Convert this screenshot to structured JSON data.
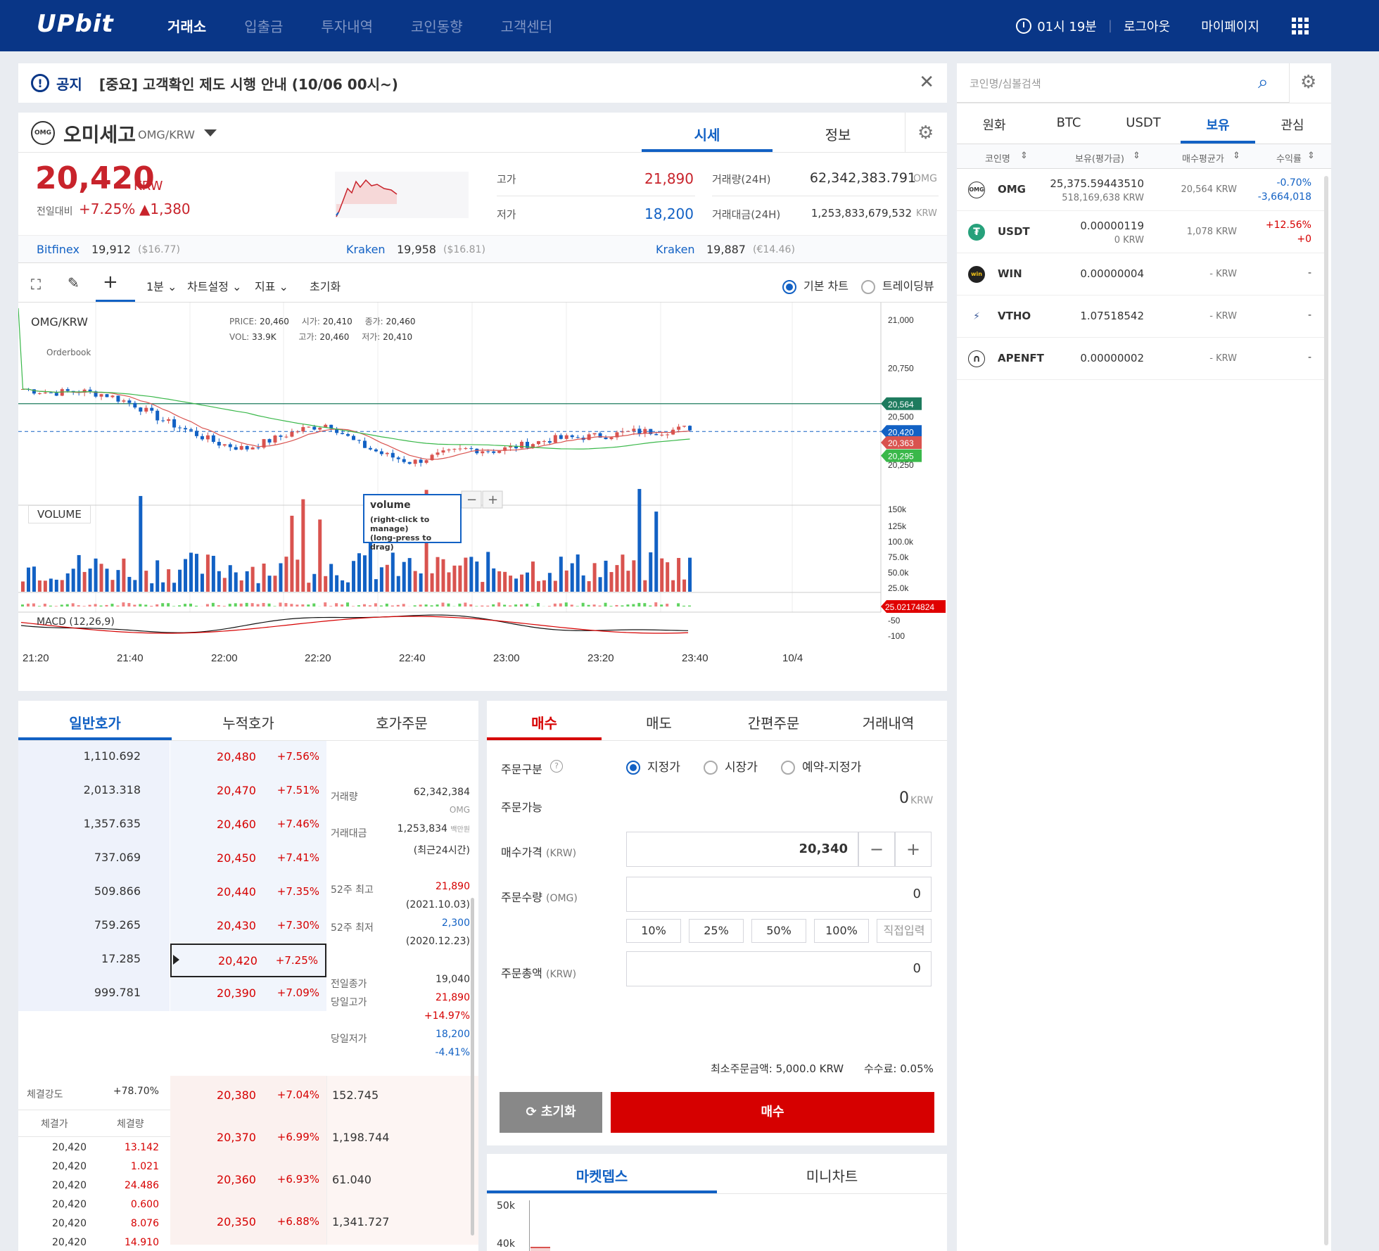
{
  "nav": {
    "logo": "UPbit",
    "items": [
      "거래소",
      "입출금",
      "투자내역",
      "코인동향",
      "고객센터"
    ],
    "timer": "01시 19분",
    "logout": "로그아웃",
    "mypage": "마이페이지"
  },
  "notice": {
    "tag": "공지",
    "text": "[중요] 고객확인 제도 시행 안내 (10/06 00시~)"
  },
  "coin": {
    "name": "오미세고",
    "pair": "OMG/KRW",
    "tab_price": "시세",
    "tab_info": "정보",
    "price": "20,420",
    "unit": "KRW",
    "change_label": "전일대비",
    "change_pct": "+7.25%",
    "change_amt": "▲1,380",
    "high_label": "고가",
    "high": "21,890",
    "low_label": "저가",
    "low": "18,200",
    "vol_label": "거래량(24H)",
    "vol": "62,342,383.791",
    "vol_unit": "OMG",
    "amt_label": "거래대금(24H)",
    "amt": "1,253,833,679,532",
    "amt_unit": "KRW"
  },
  "exchanges": [
    {
      "name": "Bitfinex",
      "price": "19,912",
      "sub": "($16.77)"
    },
    {
      "name": "Kraken",
      "price": "19,958",
      "sub": "($16.81)"
    },
    {
      "name": "Kraken",
      "price": "19,887",
      "sub": "(€14.46)"
    }
  ],
  "toolbar": {
    "interval": "1분",
    "settings": "차트설정",
    "indicator": "지표",
    "reset": "초기화",
    "basic": "기본 차트",
    "tv": "트레이딩뷰"
  },
  "chart": {
    "symbol": "OMG/KRW",
    "exch": "Orderbook",
    "legend": {
      "price_l": "PRICE:",
      "price": "20,460",
      "open_l": "시가:",
      "open": "20,410",
      "close_l": "종가:",
      "close": "20,460",
      "vol_l": "VOL:",
      "vol": "33.9K",
      "high_l": "고가:",
      "high": "20,460",
      "low_l": "저가:",
      "low": "20,410"
    },
    "volume_label": "VOLUME",
    "tooltip_title": "volume",
    "tooltip_1": "(right-click to manage)",
    "tooltip_2": "(long-press to drag)",
    "macd_label": "MACD (12,26,9)",
    "price_ticks": [
      "21,000",
      "20,750",
      "20,500",
      "20,250"
    ],
    "vol_ticks": [
      "150k",
      "125k",
      "100.0k",
      "75.0k",
      "50.0k",
      "25.0k"
    ],
    "macd_ticks": [
      "-50",
      "-100"
    ],
    "markers": [
      {
        "v": "20,564",
        "c": "#1e7b5e"
      },
      {
        "v": "20,420",
        "c": "#1261c4"
      },
      {
        "v": "20,363",
        "c": "#d9534f"
      },
      {
        "v": "20,295",
        "c": "#3ab84a"
      }
    ],
    "macd_marker": "25.02174824",
    "time_labels": [
      "21:20",
      "21:40",
      "22:00",
      "22:20",
      "22:40",
      "23:00",
      "23:20",
      "23:40",
      "10/4"
    ]
  },
  "orderbook": {
    "tabs": [
      "일반호가",
      "누적호가",
      "호가주문"
    ],
    "asks": [
      {
        "q": "1,110.692",
        "p": "20,480",
        "r": "+7.56%"
      },
      {
        "q": "2,013.318",
        "p": "20,470",
        "r": "+7.51%"
      },
      {
        "q": "1,357.635",
        "p": "20,460",
        "r": "+7.46%"
      },
      {
        "q": "737.069",
        "p": "20,450",
        "r": "+7.41%"
      },
      {
        "q": "509.866",
        "p": "20,440",
        "r": "+7.35%"
      },
      {
        "q": "759.265",
        "p": "20,430",
        "r": "+7.30%"
      },
      {
        "q": "17.285",
        "p": "20,420",
        "r": "+7.25%"
      },
      {
        "q": "999.781",
        "p": "20,390",
        "r": "+7.09%"
      }
    ],
    "bids": [
      {
        "q": "152.745",
        "p": "20,380",
        "r": "+7.04%"
      },
      {
        "q": "1,198.744",
        "p": "20,370",
        "r": "+6.99%"
      },
      {
        "q": "61.040",
        "p": "20,360",
        "r": "+6.93%"
      },
      {
        "q": "1,341.727",
        "p": "20,350",
        "r": "+6.88%"
      }
    ],
    "info": {
      "vol_l": "거래량",
      "vol": "62,342,384",
      "vol_u": "OMG",
      "amt_l": "거래대금",
      "amt": "1,253,834",
      "amt_u": "백만원",
      "amt_note": "(최근24시간)",
      "h52_l": "52주 최고",
      "h52": "21,890",
      "h52_d": "(2021.10.03)",
      "l52_l": "52주 최저",
      "l52": "2,300",
      "l52_d": "(2020.12.23)",
      "prev_l": "전일종가",
      "prev": "19,040",
      "dh_l": "당일고가",
      "dh": "21,890",
      "dh_p": "+14.97%",
      "dl_l": "당일저가",
      "dl": "18,200",
      "dl_p": "-4.41%"
    },
    "strength_l": "체결강도",
    "strength": "+78.70%",
    "th_price": "체결가",
    "th_qty": "체결량",
    "trades": [
      {
        "p": "20,420",
        "q": "13.142"
      },
      {
        "p": "20,420",
        "q": "1.021"
      },
      {
        "p": "20,420",
        "q": "24.486"
      },
      {
        "p": "20,420",
        "q": "0.600"
      },
      {
        "p": "20,420",
        "q": "8.076"
      },
      {
        "p": "20,420",
        "q": "14.910"
      }
    ]
  },
  "order": {
    "tabs": [
      "매수",
      "매도",
      "간편주문",
      "거래내역"
    ],
    "type_l": "주문구분",
    "types": [
      "지정가",
      "시장가",
      "예약-지정가"
    ],
    "avail_l": "주문가능",
    "avail": "0",
    "avail_u": "KRW",
    "price_l": "매수가격",
    "price_u": "(KRW)",
    "price": "20,340",
    "qty_l": "주문수량",
    "qty_u": "(OMG)",
    "qty": "0",
    "pcts": [
      "10%",
      "25%",
      "50%",
      "100%",
      "직접입력"
    ],
    "total_l": "주문총액",
    "total_u": "(KRW)",
    "total": "0",
    "min": "최소주문금액: 5,000.0 KRW",
    "fee": "수수료: 0.05%",
    "reset": "초기화",
    "buy": "매수"
  },
  "md": {
    "tabs": [
      "마켓뎁스",
      "미니차트"
    ],
    "ticks": [
      "50k",
      "40k"
    ]
  },
  "side": {
    "search_ph": "코인명/심볼검색",
    "tabs": [
      "원화",
      "BTC",
      "USDT",
      "보유",
      "관심"
    ],
    "cols": [
      "코인명",
      "보유(평가금)",
      "매수평균가",
      "수익률"
    ],
    "rows": [
      {
        "name": "OMG",
        "hold": "25,375.59443510",
        "eval": "518,169,638 KRW",
        "avg": "20,564 KRW",
        "rate": "-0.70%",
        "rate2": "-3,664,018",
        "cls": "blue"
      },
      {
        "name": "USDT",
        "hold": "0.00000119",
        "eval": "0 KRW",
        "avg": "1,078 KRW",
        "rate": "+12.56%",
        "rate2": "+0",
        "cls": "red"
      },
      {
        "name": "WIN",
        "hold": "0.00000004",
        "eval": "",
        "avg": "- KRW",
        "rate": "-",
        "rate2": "",
        "cls": ""
      },
      {
        "name": "VTHO",
        "hold": "1.07518542",
        "eval": "",
        "avg": "- KRW",
        "rate": "-",
        "rate2": "",
        "cls": ""
      },
      {
        "name": "APENFT",
        "hold": "0.00000002",
        "eval": "",
        "avg": "- KRW",
        "rate": "-",
        "rate2": "",
        "cls": ""
      }
    ]
  },
  "colors": {
    "brand": "#093687",
    "up": "#c84a31",
    "down": "#1261c4",
    "accent": "#d60000"
  }
}
